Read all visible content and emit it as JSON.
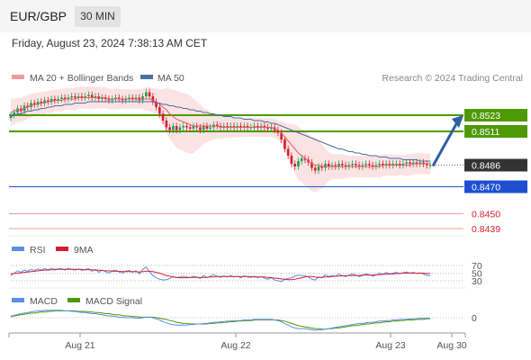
{
  "header": {
    "symbol": "EUR/GBP",
    "timeframe": "30 MIN"
  },
  "datetime": "Friday, August 23, 2024 7:38:13 AM CET",
  "legend": {
    "ma20": "MA 20 + Bollinger Bands",
    "ma50": "MA 50",
    "credit": "Research © 2024 Trading Central"
  },
  "rsi_legend": {
    "rsi": "RSI",
    "ma": "9MA"
  },
  "macd_legend": {
    "macd": "MACD",
    "signal": "MACD Signal"
  },
  "colors": {
    "up": "#1d9e55",
    "down": "#d21f2f",
    "ma20": "#e56060",
    "band_fill": "#fbd9d9",
    "ma50": "#4a6fa5",
    "green_level": "#4e9a06",
    "blue_level": "#1f4fd0",
    "red_level": "#e8a0a0",
    "current": "#333333",
    "arrow": "#2f5fa0",
    "rsi": "#5b8ee6",
    "rsi_ma": "#d21f2f",
    "macd": "#5b8ee6",
    "signal": "#4e9a06"
  },
  "chart_data": [
    {
      "type": "candlestick",
      "x_labels": [
        "Aug 21",
        "Aug 22",
        "Aug 23",
        "Aug 30"
      ],
      "y_unit": "EUR/GBP",
      "series": [
        {
          "name": "Price",
          "close": [
            0.8523,
            0.8525,
            0.8528,
            0.8526,
            0.853,
            0.8529,
            0.8532,
            0.8531,
            0.8533,
            0.8532,
            0.8534,
            0.8533,
            0.8535,
            0.8534,
            0.8535,
            0.8536,
            0.8535,
            0.8536,
            0.8537,
            0.8536,
            0.8537,
            0.8536,
            0.8537,
            0.8538,
            0.8536,
            0.8537,
            0.8535,
            0.8536,
            0.8535,
            0.8534,
            0.8535,
            0.8536,
            0.8535,
            0.8534,
            0.8535,
            0.8536,
            0.8535,
            0.8536,
            0.8534,
            0.8537,
            0.854,
            0.8537,
            0.8533,
            0.8529,
            0.8524,
            0.8519,
            0.8514,
            0.8512,
            0.8515,
            0.8512,
            0.8514,
            0.8515,
            0.8514,
            0.8513,
            0.8515,
            0.8514,
            0.8512,
            0.8515,
            0.8513,
            0.8514,
            0.8516,
            0.8515,
            0.8514,
            0.8515,
            0.8514,
            0.8515,
            0.8514,
            0.8515,
            0.8514,
            0.8515,
            0.8514,
            0.8514,
            0.8515,
            0.8514,
            0.8515,
            0.8514,
            0.8513,
            0.8514,
            0.8512,
            0.851,
            0.8505,
            0.8498,
            0.8493,
            0.8487,
            0.8485,
            0.8489,
            0.8491,
            0.849,
            0.8488,
            0.8484,
            0.8482,
            0.8485,
            0.8484,
            0.8487,
            0.8485,
            0.8486,
            0.8485,
            0.8487,
            0.8486,
            0.8485,
            0.8486,
            0.8487,
            0.8486,
            0.8485,
            0.8486,
            0.8487,
            0.8486,
            0.8485,
            0.8486,
            0.8487,
            0.8486,
            0.8487,
            0.8486,
            0.8487,
            0.8487,
            0.8486,
            0.8487,
            0.8488,
            0.8487,
            0.8488,
            0.8487,
            0.8488,
            0.8487,
            0.8486,
            0.8486
          ],
          "ma20": [
            0.8525,
            0.8526,
            0.8527,
            0.8527,
            0.8528,
            0.8529,
            0.853,
            0.8531,
            0.8531,
            0.8532,
            0.8532,
            0.8533,
            0.8533,
            0.8534,
            0.8534,
            0.8534,
            0.8535,
            0.8535,
            0.8535,
            0.8535,
            0.8536,
            0.8536,
            0.8536,
            0.8536,
            0.8536,
            0.8536,
            0.8536,
            0.8536,
            0.8536,
            0.8535,
            0.8535,
            0.8535,
            0.8535,
            0.8535,
            0.8535,
            0.8535,
            0.8535,
            0.8535,
            0.8535,
            0.8535,
            0.8535,
            0.8535,
            0.8534,
            0.8533,
            0.8531,
            0.8529,
            0.8527,
            0.8524,
            0.8522,
            0.852,
            0.8519,
            0.8518,
            0.8517,
            0.8516,
            0.8515,
            0.8515,
            0.8515,
            0.8515,
            0.8515,
            0.8515,
            0.8515,
            0.8515,
            0.8514,
            0.8514,
            0.8514,
            0.8514,
            0.8514,
            0.8514,
            0.8514,
            0.8514,
            0.8514,
            0.8514,
            0.8514,
            0.8514,
            0.8514,
            0.8514,
            0.8514,
            0.8514,
            0.8513,
            0.8512,
            0.851,
            0.8507,
            0.8504,
            0.8501,
            0.8498,
            0.8495,
            0.8493,
            0.8491,
            0.8489,
            0.8487,
            0.8486,
            0.8486,
            0.8485,
            0.8485,
            0.8485,
            0.8485,
            0.8485,
            0.8485,
            0.8485,
            0.8485,
            0.8485,
            0.8485,
            0.8485,
            0.8485,
            0.8485,
            0.8485,
            0.8485,
            0.8485,
            0.8485,
            0.8485,
            0.8486,
            0.8486,
            0.8486,
            0.8486,
            0.8486,
            0.8486,
            0.8486,
            0.8486,
            0.8486,
            0.8487,
            0.8487,
            0.8487,
            0.8487,
            0.8487,
            0.8487
          ],
          "ma50": [
            0.8522,
            0.8523,
            0.8524,
            0.8524,
            0.8525,
            0.8526,
            0.8526,
            0.8527,
            0.8527,
            0.8528,
            0.8528,
            0.8529,
            0.8529,
            0.853,
            0.853,
            0.853,
            0.8531,
            0.8531,
            0.8531,
            0.8532,
            0.8532,
            0.8532,
            0.8532,
            0.8533,
            0.8533,
            0.8533,
            0.8533,
            0.8533,
            0.8533,
            0.8533,
            0.8533,
            0.8533,
            0.8533,
            0.8533,
            0.8533,
            0.8533,
            0.8533,
            0.8533,
            0.8533,
            0.8533,
            0.8533,
            0.8533,
            0.8533,
            0.8532,
            0.8532,
            0.8531,
            0.8531,
            0.853,
            0.853,
            0.8529,
            0.8529,
            0.8528,
            0.8528,
            0.8527,
            0.8527,
            0.8526,
            0.8526,
            0.8525,
            0.8525,
            0.8524,
            0.8524,
            0.8523,
            0.8523,
            0.8522,
            0.8522,
            0.8522,
            0.8521,
            0.8521,
            0.8521,
            0.852,
            0.852,
            0.852,
            0.8519,
            0.8519,
            0.8519,
            0.8518,
            0.8518,
            0.8517,
            0.8517,
            0.8516,
            0.8515,
            0.8514,
            0.8513,
            0.8512,
            0.8511,
            0.851,
            0.8509,
            0.8508,
            0.8507,
            0.8506,
            0.8505,
            0.8504,
            0.8503,
            0.8502,
            0.8501,
            0.85,
            0.8499,
            0.8498,
            0.8498,
            0.8497,
            0.8496,
            0.8496,
            0.8495,
            0.8495,
            0.8494,
            0.8494,
            0.8493,
            0.8493,
            0.8493,
            0.8492,
            0.8492,
            0.8492,
            0.8491,
            0.8491,
            0.8491,
            0.8491,
            0.849,
            0.849,
            0.849,
            0.849,
            0.849,
            0.8489,
            0.8489,
            0.8489,
            0.8489
          ]
        }
      ],
      "levels": [
        {
          "value": "0.8523",
          "color": "green"
        },
        {
          "value": "0.8511",
          "color": "green"
        },
        {
          "value": "0.8486",
          "color": "current"
        },
        {
          "value": "0.8470",
          "color": "blue"
        },
        {
          "value": "0.8450",
          "color": "red"
        },
        {
          "value": "0.8439",
          "color": "red"
        }
      ],
      "legend_position": "top-left"
    },
    {
      "type": "line",
      "name": "RSI",
      "y_ticks": [
        "70",
        "50",
        "30"
      ],
      "series": [
        {
          "name": "RSI",
          "values": [
            44,
            50,
            56,
            52,
            58,
            55,
            60,
            57,
            61,
            58,
            62,
            59,
            63,
            60,
            61,
            62,
            58,
            63,
            60,
            58,
            61,
            57,
            60,
            62,
            55,
            60,
            52,
            58,
            54,
            50,
            56,
            58,
            53,
            50,
            55,
            57,
            52,
            56,
            48,
            60,
            66,
            54,
            44,
            38,
            34,
            32,
            33,
            36,
            42,
            38,
            40,
            42,
            40,
            38,
            42,
            40,
            36,
            44,
            38,
            42,
            46,
            42,
            39,
            43,
            40,
            44,
            40,
            42,
            38,
            43,
            40,
            39,
            42,
            38,
            41,
            37,
            34,
            38,
            32,
            30,
            28,
            34,
            36,
            38,
            42,
            45,
            44,
            43,
            40,
            34,
            32,
            40,
            38,
            46,
            41,
            44,
            42,
            48,
            44,
            41,
            45,
            48,
            45,
            41,
            44,
            48,
            46,
            42,
            45,
            50,
            47,
            52,
            48,
            50,
            52,
            49,
            51,
            53,
            50,
            52,
            49,
            51,
            48,
            44,
            44
          ]
        },
        {
          "name": "9MA",
          "values": [
            48,
            49,
            50,
            51,
            52,
            53,
            54,
            55,
            56,
            57,
            58,
            58,
            59,
            59,
            60,
            60,
            60,
            60,
            60,
            60,
            60,
            60,
            59,
            59,
            59,
            58,
            58,
            57,
            56,
            56,
            55,
            55,
            55,
            54,
            54,
            54,
            54,
            54,
            53,
            54,
            55,
            55,
            54,
            52,
            50,
            47,
            44,
            42,
            40,
            39,
            38,
            38,
            38,
            39,
            39,
            39,
            39,
            39,
            39,
            40,
            40,
            41,
            41,
            41,
            41,
            41,
            41,
            41,
            41,
            41,
            41,
            41,
            40,
            40,
            40,
            40,
            39,
            38,
            37,
            36,
            35,
            34,
            33,
            33,
            34,
            36,
            38,
            40,
            41,
            41,
            40,
            39,
            39,
            40,
            40,
            41,
            42,
            42,
            43,
            43,
            44,
            44,
            44,
            44,
            45,
            45,
            45,
            45,
            46,
            46,
            47,
            47,
            48,
            48,
            49,
            49,
            50,
            50,
            50,
            50,
            50,
            50,
            50,
            49,
            49
          ]
        }
      ]
    },
    {
      "type": "line",
      "name": "MACD",
      "y_ticks": [
        "0"
      ],
      "series": [
        {
          "name": "MACD",
          "values": [
            3e-05,
            4e-05,
            6e-05,
            7e-05,
            8e-05,
            9e-05,
            0.0001,
            0.00011,
            0.00012,
            0.00012,
            0.00013,
            0.00013,
            0.00013,
            0.00013,
            0.00013,
            0.00013,
            0.00012,
            0.00012,
            0.00011,
            0.00011,
            0.0001,
            9e-05,
            9e-05,
            8e-05,
            7e-05,
            7e-05,
            6e-05,
            5e-05,
            4e-05,
            3e-05,
            3e-05,
            2e-05,
            1e-05,
            1e-05,
            0.0,
            0.0,
            0.0,
            -1e-05,
            -1e-05,
            0.0,
            1e-05,
            1e-05,
            0.0,
            -2e-05,
            -4e-05,
            -7e-05,
            -9e-05,
            -0.00011,
            -0.00012,
            -0.00013,
            -0.00013,
            -0.00013,
            -0.00013,
            -0.00012,
            -0.00012,
            -0.00011,
            -0.00011,
            -0.0001,
            -0.0001,
            -9e-05,
            -8e-05,
            -8e-05,
            -7e-05,
            -7e-05,
            -6e-05,
            -6e-05,
            -5e-05,
            -5e-05,
            -5e-05,
            -4e-05,
            -4e-05,
            -4e-05,
            -3e-05,
            -3e-05,
            -3e-05,
            -3e-05,
            -3e-05,
            -3e-05,
            -4e-05,
            -5e-05,
            -7e-05,
            -0.0001,
            -0.00013,
            -0.00016,
            -0.00018,
            -0.00019,
            -0.00019,
            -0.00019,
            -0.0002,
            -0.00021,
            -0.00022,
            -0.00021,
            -0.00021,
            -0.0002,
            -0.00019,
            -0.00018,
            -0.00017,
            -0.00016,
            -0.00015,
            -0.00014,
            -0.00013,
            -0.00012,
            -0.00011,
            -0.0001,
            -0.0001,
            -9e-05,
            -8e-05,
            -8e-05,
            -7e-05,
            -6e-05,
            -6e-05,
            -5e-05,
            -5e-05,
            -4e-05,
            -4e-05,
            -3e-05,
            -3e-05,
            -3e-05,
            -2e-05,
            -2e-05,
            -2e-05,
            -1e-05,
            -1e-05,
            -1e-05,
            -1e-05
          ]
        },
        {
          "name": "MACD Signal",
          "values": [
            2e-05,
            3e-05,
            4e-05,
            5e-05,
            6e-05,
            7e-05,
            8e-05,
            8e-05,
            9e-05,
            0.0001,
            0.0001,
            0.00011,
            0.00011,
            0.00012,
            0.00012,
            0.00012,
            0.00012,
            0.00012,
            0.00012,
            0.00012,
            0.00011,
            0.00011,
            0.00011,
            0.0001,
            0.0001,
            9e-05,
            9e-05,
            8e-05,
            7e-05,
            7e-05,
            6e-05,
            5e-05,
            5e-05,
            4e-05,
            3e-05,
            3e-05,
            2e-05,
            2e-05,
            1e-05,
            1e-05,
            1e-05,
            1e-05,
            1e-05,
            0.0,
            -1e-05,
            -2e-05,
            -3e-05,
            -5e-05,
            -6e-05,
            -8e-05,
            -9e-05,
            -0.0001,
            -0.0001,
            -0.00011,
            -0.00011,
            -0.00011,
            -0.00011,
            -0.00011,
            -0.00011,
            -0.0001,
            -0.0001,
            -9e-05,
            -9e-05,
            -8e-05,
            -8e-05,
            -7e-05,
            -7e-05,
            -6e-05,
            -6e-05,
            -5e-05,
            -5e-05,
            -5e-05,
            -4e-05,
            -4e-05,
            -4e-05,
            -4e-05,
            -4e-05,
            -4e-05,
            -4e-05,
            -4e-05,
            -5e-05,
            -6e-05,
            -8e-05,
            -0.0001,
            -0.00012,
            -0.00014,
            -0.00015,
            -0.00016,
            -0.00017,
            -0.00018,
            -0.00019,
            -0.00019,
            -0.0002,
            -0.0002,
            -0.00019,
            -0.00019,
            -0.00018,
            -0.00018,
            -0.00017,
            -0.00016,
            -0.00015,
            -0.00014,
            -0.00014,
            -0.00013,
            -0.00012,
            -0.00011,
            -0.00011,
            -0.0001,
            -9e-05,
            -9e-05,
            -8e-05,
            -7e-05,
            -7e-05,
            -6e-05,
            -6e-05,
            -5e-05,
            -5e-05,
            -4e-05,
            -4e-05,
            -4e-05,
            -3e-05,
            -3e-05,
            -3e-05,
            -2e-05,
            -2e-05
          ]
        }
      ]
    }
  ]
}
